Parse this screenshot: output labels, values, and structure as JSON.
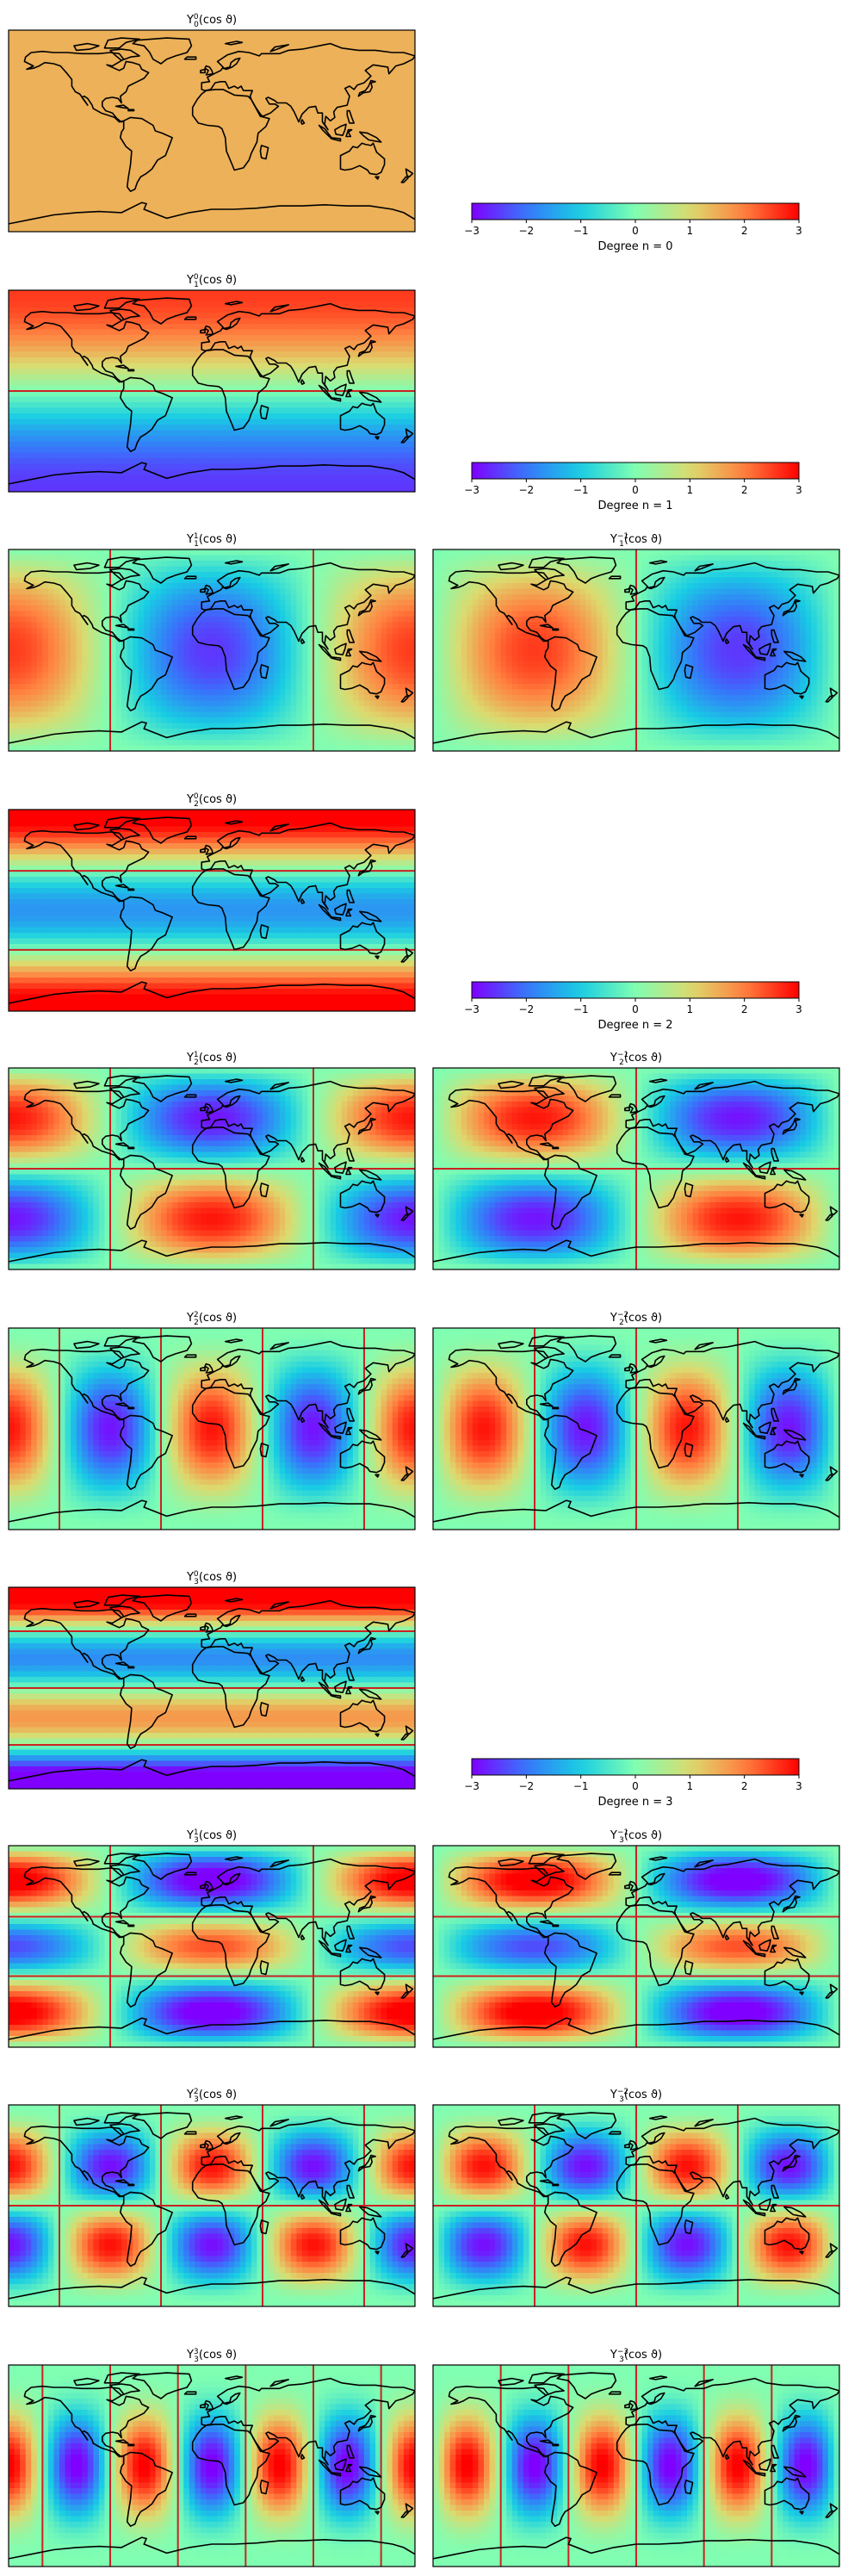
{
  "chart_data": {
    "type": "heatmap",
    "colormap": "rainbow",
    "value_range": [
      -3,
      3
    ],
    "plots": [
      {
        "n": 0,
        "m": 0,
        "title": {
          "sup": "0",
          "sub": "0"
        }
      },
      {
        "n": 1,
        "m": 0,
        "title": {
          "sup": "0",
          "sub": "1"
        }
      },
      {
        "n": 1,
        "m": 1,
        "title": {
          "sup": "1",
          "sub": "1"
        }
      },
      {
        "n": 1,
        "m": -1,
        "title": {
          "sup": "−1",
          "sub": "1"
        }
      },
      {
        "n": 2,
        "m": 0,
        "title": {
          "sup": "0",
          "sub": "2"
        }
      },
      {
        "n": 2,
        "m": 1,
        "title": {
          "sup": "1",
          "sub": "2"
        }
      },
      {
        "n": 2,
        "m": -1,
        "title": {
          "sup": "−1",
          "sub": "2"
        }
      },
      {
        "n": 2,
        "m": 2,
        "title": {
          "sup": "2",
          "sub": "2"
        }
      },
      {
        "n": 2,
        "m": -2,
        "title": {
          "sup": "−2",
          "sub": "2"
        }
      },
      {
        "n": 3,
        "m": 0,
        "title": {
          "sup": "0",
          "sub": "3"
        }
      },
      {
        "n": 3,
        "m": 1,
        "title": {
          "sup": "1",
          "sub": "3"
        }
      },
      {
        "n": 3,
        "m": -1,
        "title": {
          "sup": "−1",
          "sub": "3"
        }
      },
      {
        "n": 3,
        "m": 2,
        "title": {
          "sup": "2",
          "sub": "3"
        }
      },
      {
        "n": 3,
        "m": -2,
        "title": {
          "sup": "−2",
          "sub": "3"
        }
      },
      {
        "n": 3,
        "m": 3,
        "title": {
          "sup": "3",
          "sub": "3"
        }
      },
      {
        "n": 3,
        "m": -3,
        "title": {
          "sup": "−3",
          "sub": "3"
        }
      }
    ],
    "title_template": {
      "symbol": "Y",
      "argument": "(cos ϑ)"
    },
    "colorbars": [
      {
        "label": "Degree n = 0",
        "ticks": [
          "−3",
          "−2",
          "−1",
          "0",
          "1",
          "2",
          "3"
        ]
      },
      {
        "label": "Degree n = 1",
        "ticks": [
          "−3",
          "−2",
          "−1",
          "0",
          "1",
          "2",
          "3"
        ]
      },
      {
        "label": "Degree n = 2",
        "ticks": [
          "−3",
          "−2",
          "−1",
          "0",
          "1",
          "2",
          "3"
        ]
      },
      {
        "label": "Degree n = 3",
        "ticks": [
          "−3",
          "−2",
          "−1",
          "0",
          "1",
          "2",
          "3"
        ]
      }
    ],
    "nodal_line_color": "#cc2222",
    "coastline_color": "#000000"
  }
}
